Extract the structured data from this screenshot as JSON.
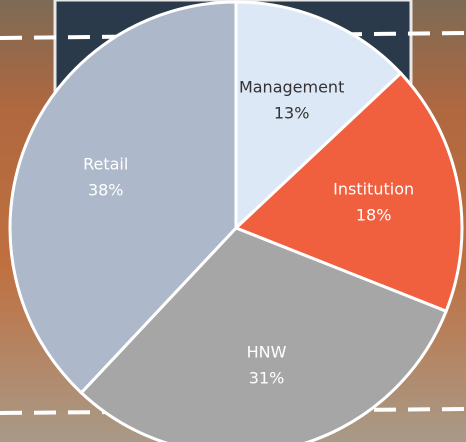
{
  "chart_data": {
    "type": "pie",
    "categories": [
      "Management",
      "Institution",
      "HNW",
      "Retail"
    ],
    "values": [
      13,
      18,
      31,
      38
    ],
    "value_labels": [
      "13%",
      "18%",
      "31%",
      "38%"
    ],
    "colors": [
      "#dce8f5",
      "#f05f3e",
      "#a6a6a6",
      "#adb9ca"
    ],
    "label_colors": [
      "#333333",
      "#ffffff",
      "#ffffff",
      "#ffffff"
    ]
  }
}
